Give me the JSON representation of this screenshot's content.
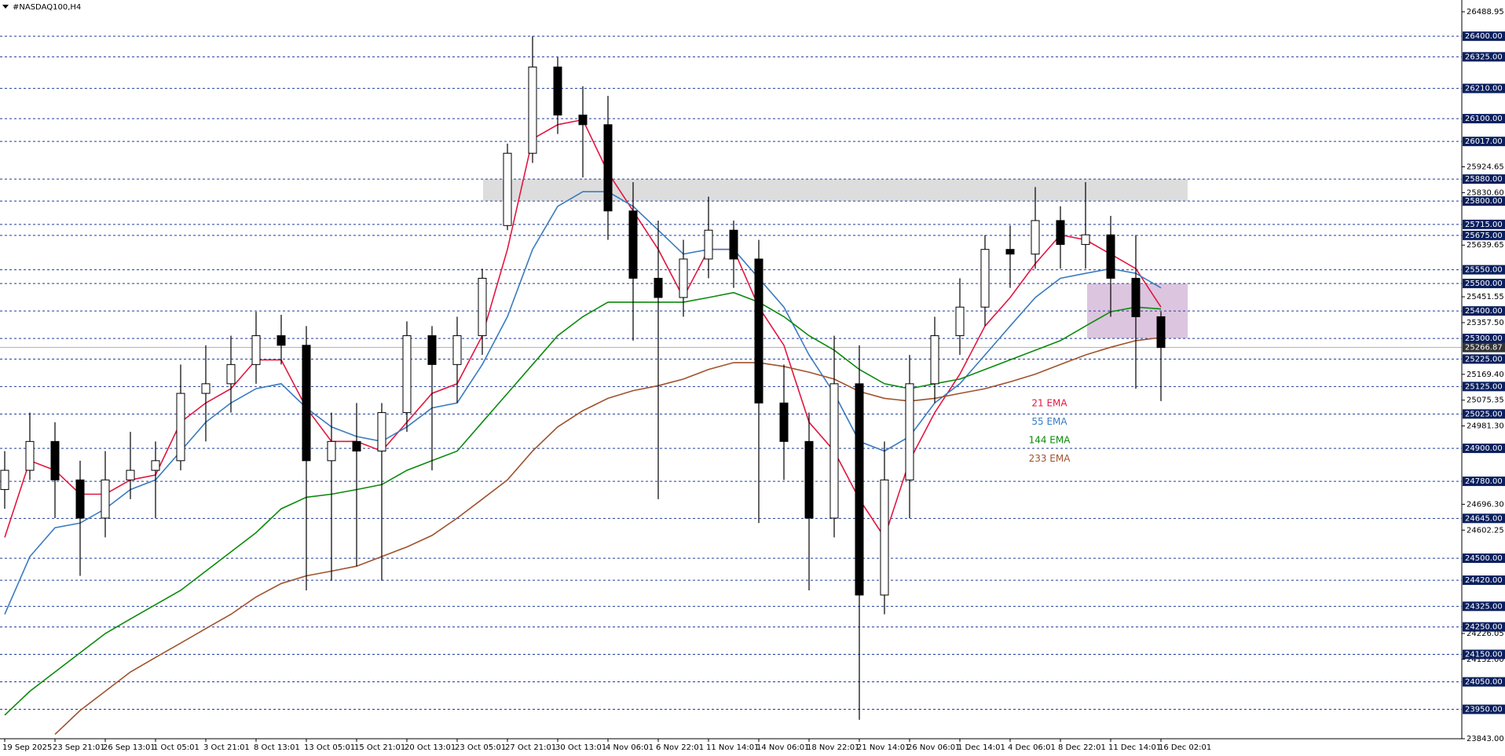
{
  "chart_data": {
    "type": "candlestick",
    "title": "#NASDAQ100,H4",
    "categories": [
      "19 Sep 2025",
      null,
      "23 Sep 21:01",
      null,
      "26 Sep 13:01",
      null,
      "1 Oct 05:01",
      null,
      "3 Oct 21:01",
      null,
      "8 Oct 13:01",
      null,
      "13 Oct 05:01",
      null,
      "15 Oct 21:01",
      null,
      "20 Oct 13:01",
      null,
      "23 Oct 05:01",
      null,
      "27 Oct 21:01",
      null,
      "30 Oct 13:01",
      null,
      "4 Nov 06:01",
      null,
      "6 Nov 22:01",
      null,
      "11 Nov 14:01",
      null,
      "14 Nov 06:01",
      null,
      "18 Nov 22:01",
      null,
      "21 Nov 14:01",
      null,
      "26 Nov 06:01",
      null,
      "1 Dec 14:01",
      null,
      "4 Dec 06:01",
      null,
      "8 Dec 22:01",
      null,
      "11 Dec 14:01",
      null,
      "16 Dec 02:01"
    ],
    "open": [
      24750,
      24820,
      24925,
      24785,
      24646,
      24785,
      24820,
      24855,
      25100,
      25135,
      25205,
      25310,
      25275,
      24855,
      24925,
      24890,
      25030,
      25310,
      25205,
      25310,
      25711,
      25974,
      26288,
      26113,
      26078,
      25764,
      25519,
      25449,
      25589,
      25694,
      25589,
      25065,
      24925,
      24646,
      25135,
      24366,
      24785,
      25135,
      25310,
      25414,
      25624,
      25607,
      25729,
      25642,
      25677,
      25519,
      25379
    ],
    "high": [
      24890,
      25030,
      24995,
      24855,
      24890,
      24960,
      24925,
      25205,
      25275,
      25310,
      25397,
      25386,
      25345,
      25030,
      25065,
      25065,
      25362,
      25345,
      25379,
      25554,
      26009,
      26400,
      26323,
      26218,
      26183,
      25869,
      25729,
      25659,
      25816,
      25729,
      25659,
      25205,
      25030,
      25310,
      25275,
      24925,
      25240,
      25379,
      25519,
      25676,
      25711,
      25851,
      25781,
      25869,
      25746,
      25676,
      25397
    ],
    "low": [
      24680,
      24785,
      24646,
      24436,
      24576,
      24715,
      24646,
      24820,
      24925,
      25030,
      25135,
      25205,
      24383,
      24418,
      24471,
      24418,
      24960,
      24820,
      25065,
      25240,
      25694,
      25939,
      26044,
      25886,
      25659,
      25292,
      24715,
      25379,
      25519,
      25484,
      24628,
      24785,
      24383,
      24576,
      23912,
      24296,
      24646,
      25065,
      25240,
      25345,
      25484,
      25554,
      25554,
      25554,
      25379,
      25117,
      25072
    ],
    "close": [
      24820,
      24925,
      24785,
      24646,
      24785,
      24820,
      24855,
      25100,
      25135,
      25205,
      25310,
      25275,
      24855,
      24925,
      24890,
      25030,
      25310,
      25205,
      25310,
      25519,
      25974,
      26288,
      26113,
      26078,
      25764,
      25519,
      25449,
      25589,
      25694,
      25589,
      25065,
      24925,
      24646,
      25135,
      24366,
      24785,
      25135,
      25310,
      25414,
      25624,
      25607,
      25729,
      25642,
      25677,
      25519,
      25379,
      25266.87
    ],
    "series": [
      {
        "name": "21 EMA",
        "color": "#e3163f",
        "values": [
          24576,
          24855,
          24820,
          24733,
          24733,
          24785,
          24803,
          24995,
          25065,
          25117,
          25222,
          25222,
          25047,
          24925,
          24925,
          24890,
          24995,
          25100,
          25135,
          25310,
          25624,
          26026,
          26078,
          26096,
          25904,
          25764,
          25624,
          25449,
          25624,
          25624,
          25414,
          25275,
          24995,
          24890,
          24715,
          24576,
          24855,
          25030,
          25170,
          25345,
          25449,
          25572,
          25677,
          25659,
          25607,
          25554,
          25414
        ]
      },
      {
        "name": "55 EMA",
        "color": "#3a7bbf",
        "values": [
          24296,
          24506,
          24611,
          24628,
          24680,
          24750,
          24785,
          24890,
          24995,
          25065,
          25117,
          25135,
          25047,
          24978,
          24943,
          24925,
          24978,
          25047,
          25065,
          25205,
          25379,
          25624,
          25781,
          25834,
          25834,
          25781,
          25694,
          25607,
          25624,
          25624,
          25519,
          25414,
          25240,
          25100,
          24925,
          24890,
          24943,
          25065,
          25135,
          25240,
          25345,
          25449,
          25519,
          25537,
          25554,
          25537,
          25484
        ]
      },
      {
        "name": "144 EMA",
        "color": "#0c8a0c",
        "values": [
          23929,
          24016,
          24086,
          24156,
          24226,
          24279,
          24331,
          24383,
          24453,
          24523,
          24593,
          24680,
          24722,
          24733,
          24750,
          24768,
          24820,
          24855,
          24890,
          24995,
          25100,
          25205,
          25310,
          25379,
          25432,
          25432,
          25432,
          25432,
          25449,
          25467,
          25432,
          25379,
          25310,
          25257,
          25187,
          25135,
          25117,
          25135,
          25152,
          25187,
          25222,
          25257,
          25292,
          25345,
          25397,
          25414,
          25407
        ]
      },
      {
        "name": "233 EMA",
        "color": "#a0522d",
        "values": [
          null,
          null,
          23859,
          23946,
          24016,
          24086,
          24139,
          24191,
          24244,
          24296,
          24359,
          24408,
          24436,
          24453,
          24471,
          24506,
          24541,
          24583,
          24646,
          24715,
          24785,
          24890,
          24978,
          25037,
          25082,
          25110,
          25128,
          25152,
          25187,
          25212,
          25212,
          25198,
          25177,
          25152,
          25107,
          25082,
          25072,
          25082,
          25100,
          25117,
          25142,
          25170,
          25205,
          25240,
          25268,
          25292,
          25303
        ]
      }
    ],
    "up_color": "#ffffff",
    "down_color": "#000000",
    "ylim": [
      23843,
      26488.95
    ],
    "yticks": [
      26488.95,
      25924.65,
      {
        "value": 25830.6,
        "label": "25830.60"
      },
      25639.65,
      25451.55,
      {
        "value": 25357.5,
        "label": "25357.50"
      },
      {
        "value": 25169.4,
        "label": "25169.40"
      },
      25075.35,
      {
        "value": 24981.3,
        "label": "24981.30"
      },
      {
        "value": 24696.3,
        "label": "24696.30"
      },
      24602.25,
      24226.05,
      {
        "value": 24132,
        "label": "24132.00"
      },
      {
        "value": 23843,
        "label": "23843.00"
      }
    ],
    "levels": [
      {
        "value": 26400,
        "label": "26400.00"
      },
      {
        "value": 26325,
        "label": "26325.00"
      },
      {
        "value": 26210,
        "label": "26210.00"
      },
      {
        "value": 26100,
        "label": "26100.00"
      },
      {
        "value": 26017,
        "label": "26017.00"
      },
      {
        "value": 25880,
        "label": "25880.00"
      },
      {
        "value": 25800,
        "label": "25800.00"
      },
      {
        "value": 25715,
        "label": "25715.00"
      },
      {
        "value": 25675,
        "label": "25675.00"
      },
      {
        "value": 25550,
        "label": "25550.00"
      },
      {
        "value": 25500,
        "label": "25500.00"
      },
      {
        "value": 25400,
        "label": "25400.00"
      },
      {
        "value": 25300,
        "label": "25300.00"
      },
      {
        "value": 25225,
        "label": "25225.00"
      },
      {
        "value": 25125,
        "label": "25125.00"
      },
      {
        "value": 25025,
        "label": "25025.00"
      },
      {
        "value": 24900,
        "label": "24900.00"
      },
      {
        "value": 24780,
        "label": "24780.00"
      },
      {
        "value": 24645,
        "label": "24645.00"
      },
      {
        "value": 24500,
        "label": "24500.00"
      },
      {
        "value": 24420,
        "label": "24420.00"
      },
      {
        "value": 24325,
        "label": "24325.00"
      },
      {
        "value": 24250,
        "label": "24250.00"
      },
      {
        "value": 24150,
        "label": "24150.00"
      },
      {
        "value": 24050,
        "label": "24050.00"
      },
      {
        "value": 23950,
        "label": "23950.00"
      }
    ],
    "level_color": "#1f3a9a",
    "current_price": 25266.87,
    "zones": [
      {
        "from": 25800,
        "to": 25880,
        "color": "#d9d9d9"
      },
      {
        "from": 25300,
        "to": 25500,
        "color": "#d8bfdc"
      }
    ]
  }
}
